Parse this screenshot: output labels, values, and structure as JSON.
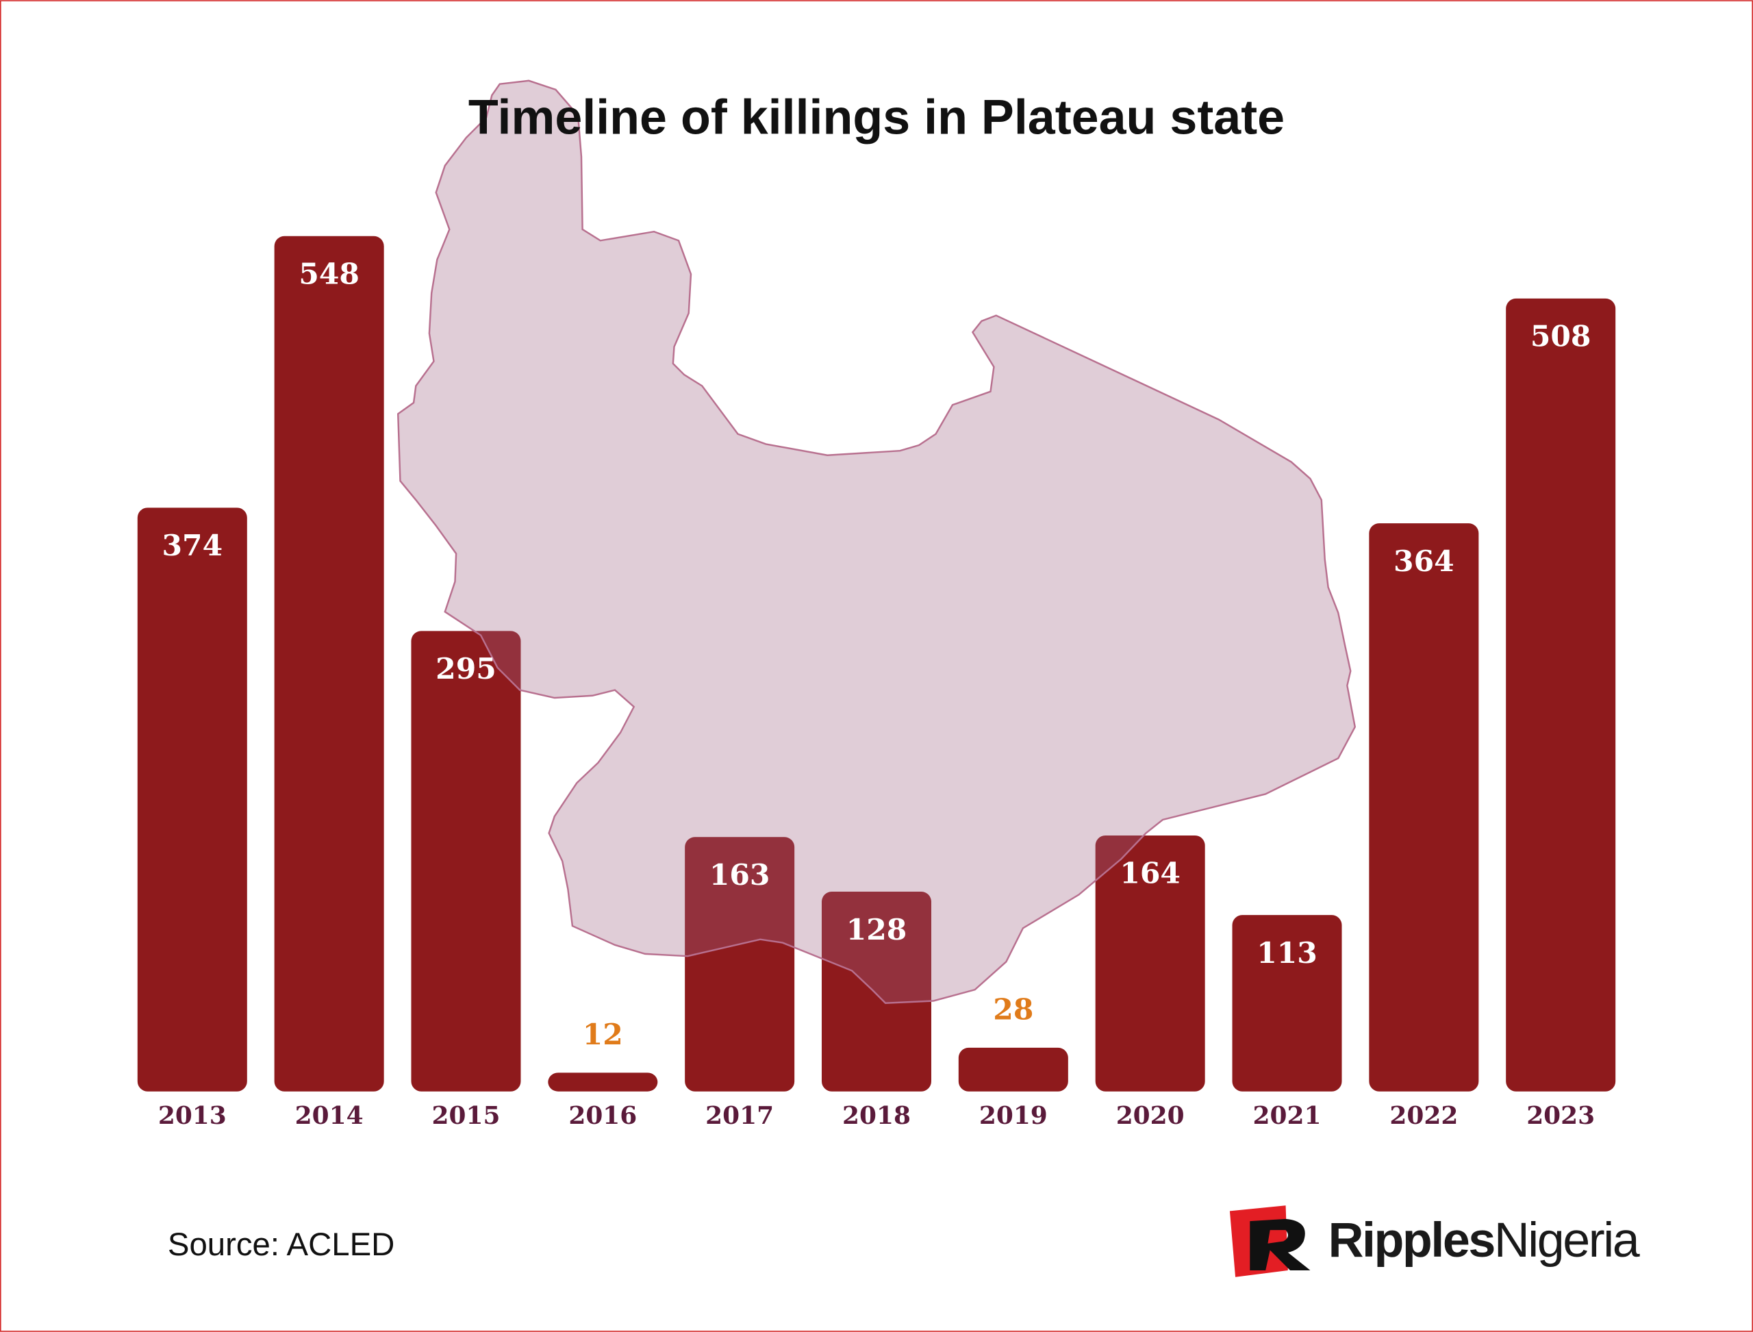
{
  "chart_data": {
    "type": "bar",
    "title": "Timeline of killings in Plateau state",
    "categories": [
      "2013",
      "2014",
      "2015",
      "2016",
      "2017",
      "2018",
      "2019",
      "2020",
      "2021",
      "2022",
      "2023"
    ],
    "values": [
      374,
      548,
      295,
      12,
      163,
      128,
      28,
      164,
      113,
      364,
      508
    ],
    "color": "#8e1a1c",
    "label_color": "#ffffff",
    "outside_label_color": "#e07b1a",
    "source": "Source: ACLED"
  },
  "logo": {
    "parts": [
      "Ripples",
      "Nigeria"
    ]
  }
}
